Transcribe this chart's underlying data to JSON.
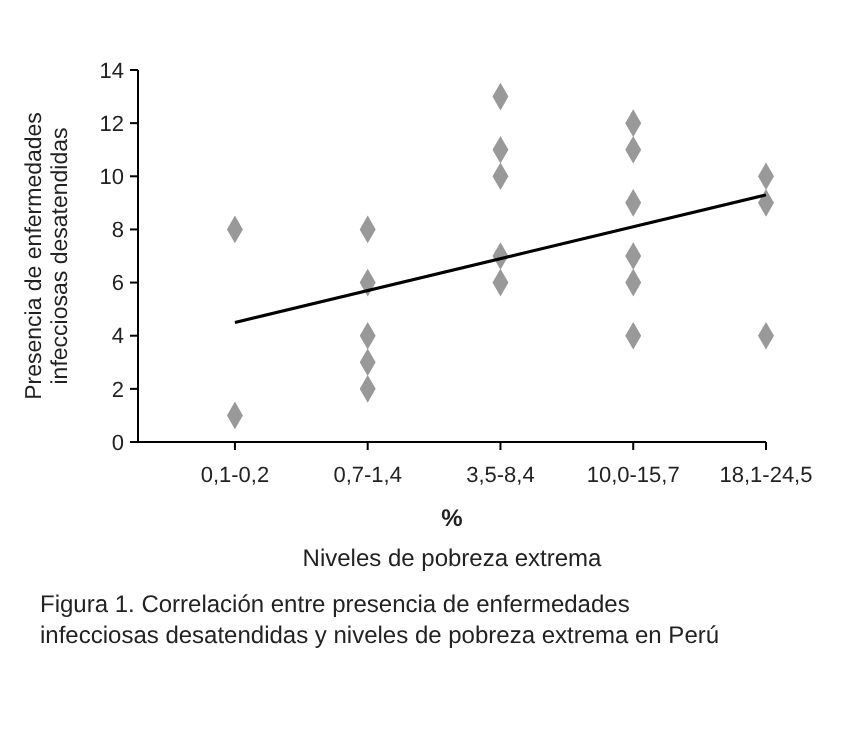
{
  "chart_data": {
    "type": "scatter",
    "xlabel": "Niveles de pobreza extrema",
    "ylabel": "Presencia de enfermedades infecciosas desatendidas",
    "categories": [
      "0,1-0,2",
      "0,7-1,4",
      "3,5-8,4",
      "10,0-15,7",
      "18,1-24,5"
    ],
    "series": [
      {
        "color": "#999999",
        "marker": "diamond",
        "x": [
          "0,1-0,2",
          "0,1-0,2",
          "0,7-1,4",
          "0,7-1,4",
          "0,7-1,4",
          "0,7-1,4",
          "0,7-1,4",
          "3,5-8,4",
          "3,5-8,4",
          "3,5-8,4",
          "3,5-8,4",
          "3,5-8,4",
          "10,0-15,7",
          "10,0-15,7",
          "10,0-15,7",
          "10,0-15,7",
          "10,0-15,7",
          "10,0-15,7",
          "18,1-24,5",
          "18,1-24,5",
          "18,1-24,5"
        ],
        "values": [
          8,
          1,
          8,
          6,
          4,
          3,
          2,
          13,
          11,
          10,
          7,
          6,
          12,
          11,
          9,
          7,
          6,
          4,
          10,
          9,
          4
        ]
      },
      {
        "type": "line",
        "color": "#000000",
        "marker": "none",
        "line_style": "solid",
        "x": [
          "0,1-0,2",
          "18,1-24,5"
        ],
        "values": [
          4.5,
          9.3
        ]
      }
    ],
    "ylim": [
      0,
      14
    ],
    "yticks": [
      0,
      2,
      4,
      6,
      8,
      10,
      12,
      14
    ],
    "grid": false,
    "annotations": [
      "%",
      "Figura 1. Correlación entre presencia de enfermedades infecciosas desatendidas y niveles de pobreza extrema en Perú"
    ]
  }
}
